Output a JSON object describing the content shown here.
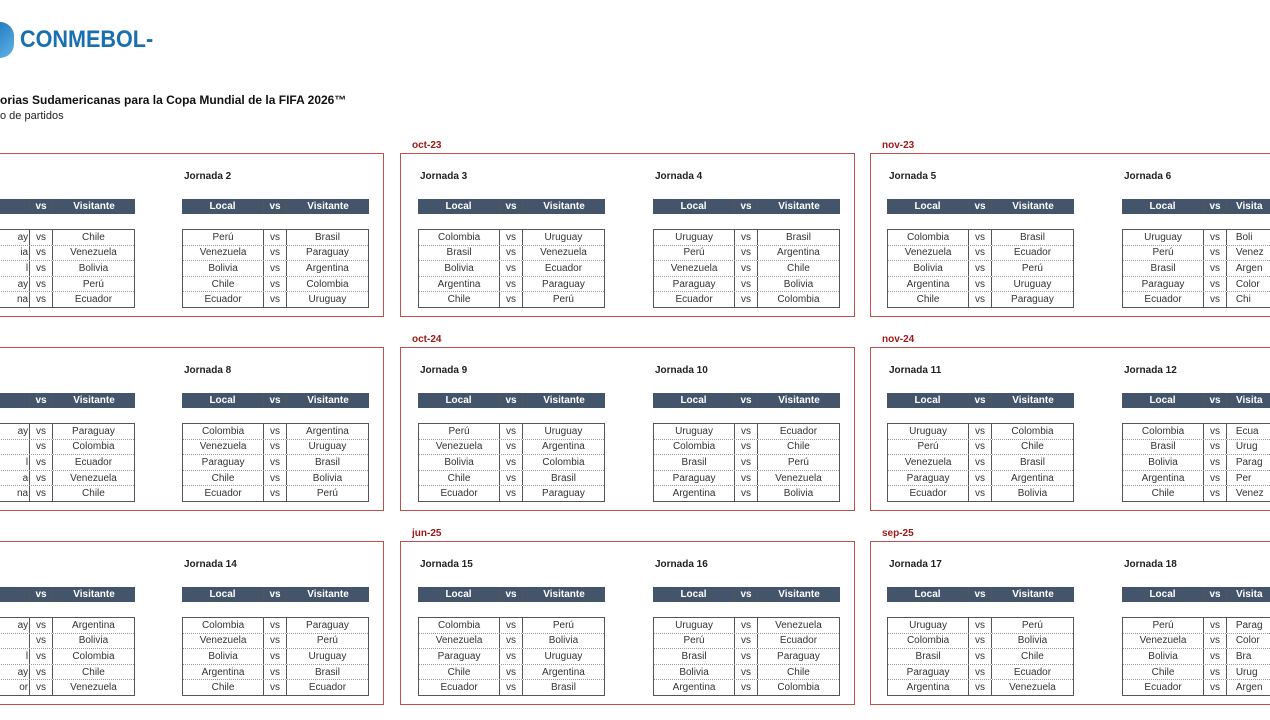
{
  "header": {
    "logo_text": "CONMEBOL-",
    "title": "orias Sudamericanas para la Copa Mundial de la FIFA 2026™",
    "subtitle": "o de partidos"
  },
  "colors": {
    "header_bar": "#44546a",
    "panel_border": "#c0504d",
    "month": "#a01818",
    "logo": "#1a6fb0"
  },
  "panels": [
    {
      "month": "",
      "jornadas": [
        {
          "label": "",
          "clip": "left",
          "head": [
            "",
            "vs",
            "Visitante"
          ],
          "matches": [
            [
              "ay",
              "Chile"
            ],
            [
              "ia",
              "Venezuela"
            ],
            [
              "l",
              "Bolivia"
            ],
            [
              "ay",
              "Perú"
            ],
            [
              "na",
              "Ecuador"
            ]
          ]
        },
        {
          "label": "Jornada 2",
          "head": [
            "Local",
            "vs",
            "Visitante"
          ],
          "matches": [
            [
              "Perú",
              "Brasil"
            ],
            [
              "Venezuela",
              "Paraguay"
            ],
            [
              "Bolivia",
              "Argentina"
            ],
            [
              "Chile",
              "Colombia"
            ],
            [
              "Ecuador",
              "Uruguay"
            ]
          ]
        }
      ]
    },
    {
      "month": "oct-23",
      "jornadas": [
        {
          "label": "Jornada 3",
          "head": [
            "Local",
            "vs",
            "Visitante"
          ],
          "matches": [
            [
              "Colombia",
              "Uruguay"
            ],
            [
              "Brasil",
              "Venezuela"
            ],
            [
              "Bolivia",
              "Ecuador"
            ],
            [
              "Argentina",
              "Paraguay"
            ],
            [
              "Chile",
              "Perú"
            ]
          ]
        },
        {
          "label": "Jornada 4",
          "head": [
            "Local",
            "vs",
            "Visitante"
          ],
          "matches": [
            [
              "Uruguay",
              "Brasil"
            ],
            [
              "Perú",
              "Argentina"
            ],
            [
              "Venezuela",
              "Chile"
            ],
            [
              "Paraguay",
              "Bolivia"
            ],
            [
              "Ecuador",
              "Colombia"
            ]
          ]
        }
      ]
    },
    {
      "month": "nov-23",
      "jornadas": [
        {
          "label": "Jornada 5",
          "head": [
            "Local",
            "vs",
            "Visitante"
          ],
          "matches": [
            [
              "Colombia",
              "Brasil"
            ],
            [
              "Venezuela",
              "Ecuador"
            ],
            [
              "Bolivia",
              "Perú"
            ],
            [
              "Argentina",
              "Uruguay"
            ],
            [
              "Chile",
              "Paraguay"
            ]
          ]
        },
        {
          "label": "Jornada 6",
          "clip": "right",
          "head": [
            "Local",
            "vs",
            "Visita"
          ],
          "matches": [
            [
              "Uruguay",
              "Boli"
            ],
            [
              "Perú",
              "Venez"
            ],
            [
              "Brasil",
              "Argen"
            ],
            [
              "Paraguay",
              "Color"
            ],
            [
              "Ecuador",
              "Chi"
            ]
          ]
        }
      ]
    },
    {
      "month": "",
      "jornadas": [
        {
          "label": "",
          "clip": "left",
          "head": [
            "",
            "vs",
            "Visitante"
          ],
          "matches": [
            [
              "ay",
              "Paraguay"
            ],
            [
              "",
              "Colombia"
            ],
            [
              "l",
              "Ecuador"
            ],
            [
              "a",
              "Venezuela"
            ],
            [
              "na",
              "Chile"
            ]
          ]
        },
        {
          "label": "Jornada 8",
          "head": [
            "Local",
            "vs",
            "Visitante"
          ],
          "matches": [
            [
              "Colombia",
              "Argentina"
            ],
            [
              "Venezuela",
              "Uruguay"
            ],
            [
              "Paraguay",
              "Brasil"
            ],
            [
              "Chile",
              "Bolivia"
            ],
            [
              "Ecuador",
              "Perú"
            ]
          ]
        }
      ]
    },
    {
      "month": "oct-24",
      "jornadas": [
        {
          "label": "Jornada 9",
          "head": [
            "Local",
            "vs",
            "Visitante"
          ],
          "matches": [
            [
              "Perú",
              "Uruguay"
            ],
            [
              "Venezuela",
              "Argentina"
            ],
            [
              "Bolivia",
              "Colombia"
            ],
            [
              "Chile",
              "Brasil"
            ],
            [
              "Ecuador",
              "Paraguay"
            ]
          ]
        },
        {
          "label": "Jornada 10",
          "head": [
            "Local",
            "vs",
            "Visitante"
          ],
          "matches": [
            [
              "Uruguay",
              "Ecuador"
            ],
            [
              "Colombia",
              "Chile"
            ],
            [
              "Brasil",
              "Perú"
            ],
            [
              "Paraguay",
              "Venezuela"
            ],
            [
              "Argentina",
              "Bolivia"
            ]
          ]
        }
      ]
    },
    {
      "month": "nov-24",
      "jornadas": [
        {
          "label": "Jornada 11",
          "head": [
            "Local",
            "vs",
            "Visitante"
          ],
          "matches": [
            [
              "Uruguay",
              "Colombia"
            ],
            [
              "Perú",
              "Chile"
            ],
            [
              "Venezuela",
              "Brasil"
            ],
            [
              "Paraguay",
              "Argentina"
            ],
            [
              "Ecuador",
              "Bolivia"
            ]
          ]
        },
        {
          "label": "Jornada 12",
          "clip": "right",
          "head": [
            "Local",
            "vs",
            "Visita"
          ],
          "matches": [
            [
              "Colombia",
              "Ecua"
            ],
            [
              "Brasil",
              "Urug"
            ],
            [
              "Bolivia",
              "Parag"
            ],
            [
              "Argentina",
              "Per"
            ],
            [
              "Chile",
              "Venez"
            ]
          ]
        }
      ]
    },
    {
      "month": "",
      "jornadas": [
        {
          "label": "",
          "clip": "left",
          "head": [
            "",
            "vs",
            "Visitante"
          ],
          "matches": [
            [
              "ay",
              "Argentina"
            ],
            [
              "",
              "Bolivia"
            ],
            [
              "l",
              "Colombia"
            ],
            [
              "ay",
              "Chile"
            ],
            [
              "or",
              "Venezuela"
            ]
          ]
        },
        {
          "label": "Jornada 14",
          "head": [
            "Local",
            "vs",
            "Visitante"
          ],
          "matches": [
            [
              "Colombia",
              "Paraguay"
            ],
            [
              "Venezuela",
              "Perú"
            ],
            [
              "Bolivia",
              "Uruguay"
            ],
            [
              "Argentina",
              "Brasil"
            ],
            [
              "Chile",
              "Ecuador"
            ]
          ]
        }
      ]
    },
    {
      "month": "jun-25",
      "jornadas": [
        {
          "label": "Jornada 15",
          "head": [
            "Local",
            "vs",
            "Visitante"
          ],
          "matches": [
            [
              "Colombia",
              "Perú"
            ],
            [
              "Venezuela",
              "Bolivia"
            ],
            [
              "Paraguay",
              "Uruguay"
            ],
            [
              "Chile",
              "Argentina"
            ],
            [
              "Ecuador",
              "Brasil"
            ]
          ]
        },
        {
          "label": "Jornada 16",
          "head": [
            "Local",
            "vs",
            "Visitante"
          ],
          "matches": [
            [
              "Uruguay",
              "Venezuela"
            ],
            [
              "Perú",
              "Ecuador"
            ],
            [
              "Brasil",
              "Paraguay"
            ],
            [
              "Bolivia",
              "Chile"
            ],
            [
              "Argentina",
              "Colombia"
            ]
          ]
        }
      ]
    },
    {
      "month": "sep-25",
      "jornadas": [
        {
          "label": "Jornada 17",
          "head": [
            "Local",
            "vs",
            "Visitante"
          ],
          "matches": [
            [
              "Uruguay",
              "Perú"
            ],
            [
              "Colombia",
              "Bolivia"
            ],
            [
              "Brasil",
              "Chile"
            ],
            [
              "Paraguay",
              "Ecuador"
            ],
            [
              "Argentina",
              "Venezuela"
            ]
          ]
        },
        {
          "label": "Jornada 18",
          "clip": "right",
          "head": [
            "Local",
            "vs",
            "Visita"
          ],
          "matches": [
            [
              "Perú",
              "Parag"
            ],
            [
              "Venezuela",
              "Color"
            ],
            [
              "Bolivia",
              "Bra"
            ],
            [
              "Chile",
              "Urug"
            ],
            [
              "Ecuador",
              "Argen"
            ]
          ]
        }
      ]
    }
  ]
}
